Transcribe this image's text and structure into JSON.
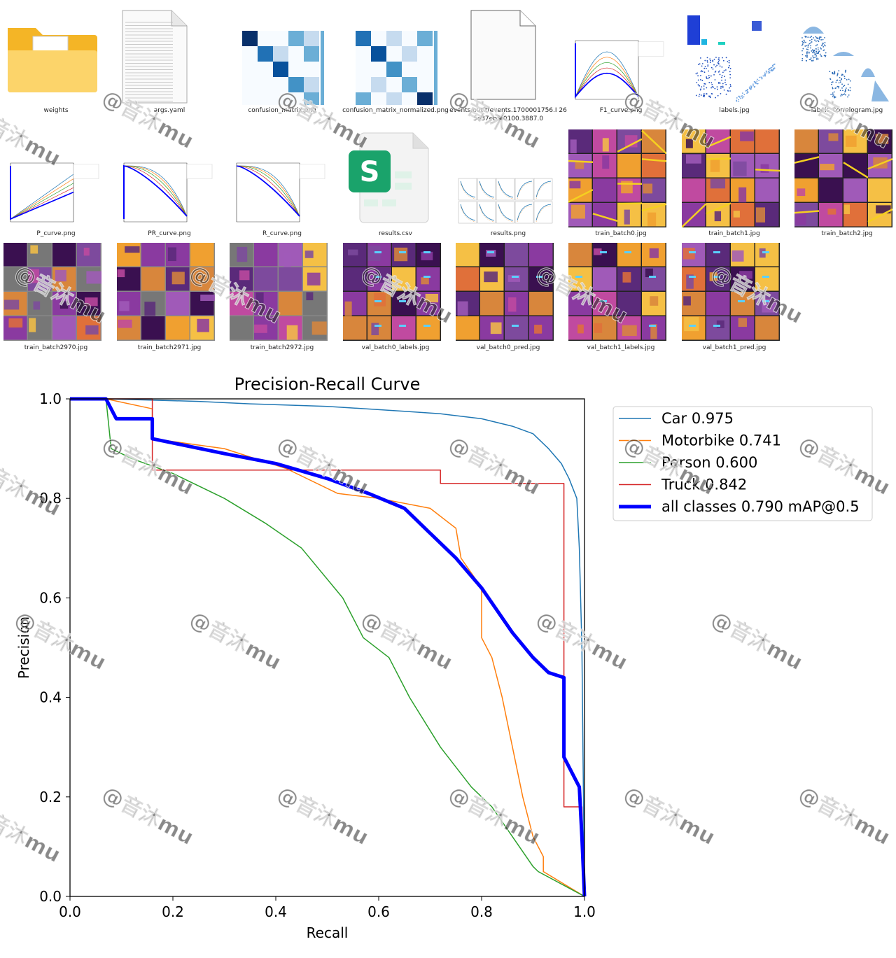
{
  "files": [
    {
      "name": "weights",
      "kind": "folder"
    },
    {
      "name": "args.yaml",
      "kind": "text"
    },
    {
      "name": "confusion_matrix.png",
      "kind": "confusion"
    },
    {
      "name": "confusion_matrix_normalized.png",
      "kind": "confusion2"
    },
    {
      "name": "events.out.tfevents.1700001756.I 265e37eb5f0100.3887.0",
      "kind": "blank"
    },
    {
      "name": "F1_curve.png",
      "kind": "curve"
    },
    {
      "name": "labels.jpg",
      "kind": "labels"
    },
    {
      "name": "labels_correlogram.jpg",
      "kind": "correlogram"
    },
    {
      "name": "P_curve.png",
      "kind": "curve"
    },
    {
      "name": "PR_curve.png",
      "kind": "curve"
    },
    {
      "name": "R_curve.png",
      "kind": "curve"
    },
    {
      "name": "results.csv",
      "kind": "csv"
    },
    {
      "name": "results.png",
      "kind": "results"
    },
    {
      "name": "train_batch0.jpg",
      "kind": "mosaic"
    },
    {
      "name": "train_batch1.jpg",
      "kind": "mosaic"
    },
    {
      "name": "train_batch2.jpg",
      "kind": "mosaic"
    },
    {
      "name": "train_batch2970.jpg",
      "kind": "mosaic-gray"
    },
    {
      "name": "train_batch2971.jpg",
      "kind": "mosaic-gray"
    },
    {
      "name": "train_batch2972.jpg",
      "kind": "mosaic-gray"
    },
    {
      "name": "val_batch0_labels.jpg",
      "kind": "val"
    },
    {
      "name": "val_batch0_pred.jpg",
      "kind": "val"
    },
    {
      "name": "val_batch1_labels.jpg",
      "kind": "val"
    },
    {
      "name": "val_batch1_pred.jpg",
      "kind": "val"
    }
  ],
  "watermark": "@音沐mu",
  "colors": {
    "car": "#1f77b4",
    "motorbike": "#ff7f0e",
    "person": "#2ca02c",
    "truck": "#d62728",
    "all": "#0000ff"
  },
  "chart_data": {
    "type": "line",
    "title": "Precision-Recall Curve",
    "xlabel": "Recall",
    "ylabel": "Precision",
    "xlim": [
      0,
      1
    ],
    "ylim": [
      0,
      1
    ],
    "xticks": [
      "0.0",
      "0.2",
      "0.4",
      "0.6",
      "0.8",
      "1.0"
    ],
    "yticks": [
      "0.0",
      "0.2",
      "0.4",
      "0.6",
      "0.8",
      "1.0"
    ],
    "legend_position": "top-right",
    "series": [
      {
        "name": "Car 0.975",
        "color": "#1f77b4",
        "width": 1.5,
        "x": [
          0,
          0.07,
          0.25,
          0.35,
          0.5,
          0.65,
          0.72,
          0.8,
          0.86,
          0.9,
          0.93,
          0.955,
          0.97,
          0.985,
          0.99,
          0.995,
          0.998,
          1.0
        ],
        "y": [
          1,
          1,
          0.995,
          0.99,
          0.985,
          0.975,
          0.97,
          0.96,
          0.945,
          0.93,
          0.9,
          0.87,
          0.84,
          0.8,
          0.7,
          0.5,
          0.2,
          0
        ]
      },
      {
        "name": "Motorbike 0.741",
        "color": "#ff7f0e",
        "width": 1.5,
        "x": [
          0,
          0.07,
          0.16,
          0.16,
          0.3,
          0.42,
          0.52,
          0.6,
          0.7,
          0.75,
          0.76,
          0.78,
          0.8,
          0.8,
          0.82,
          0.84,
          0.86,
          0.88,
          0.9,
          0.92,
          0.92,
          1.0
        ],
        "y": [
          1,
          1,
          0.98,
          0.92,
          0.9,
          0.86,
          0.81,
          0.8,
          0.78,
          0.74,
          0.68,
          0.65,
          0.62,
          0.52,
          0.48,
          0.4,
          0.3,
          0.2,
          0.12,
          0.08,
          0.05,
          0.0
        ]
      },
      {
        "name": "Person 0.600",
        "color": "#2ca02c",
        "width": 1.5,
        "x": [
          0,
          0.07,
          0.08,
          0.12,
          0.2,
          0.3,
          0.38,
          0.45,
          0.53,
          0.57,
          0.62,
          0.66,
          0.72,
          0.78,
          0.82,
          0.86,
          0.9,
          0.91,
          1.0
        ],
        "y": [
          1,
          1,
          0.9,
          0.88,
          0.85,
          0.8,
          0.75,
          0.7,
          0.6,
          0.52,
          0.48,
          0.4,
          0.3,
          0.22,
          0.18,
          0.12,
          0.06,
          0.05,
          0.0
        ]
      },
      {
        "name": "Truck 0.842",
        "color": "#d62728",
        "width": 1.5,
        "x": [
          0,
          0.16,
          0.16,
          0.72,
          0.72,
          0.96,
          0.96,
          0.995,
          1.0
        ],
        "y": [
          1,
          1,
          0.857,
          0.857,
          0.83,
          0.83,
          0.18,
          0.18,
          0.0
        ]
      },
      {
        "name": "all classes 0.790 mAP@0.5",
        "color": "#0000ff",
        "width": 5,
        "x": [
          0,
          0.07,
          0.09,
          0.16,
          0.16,
          0.3,
          0.4,
          0.5,
          0.58,
          0.65,
          0.7,
          0.75,
          0.8,
          0.86,
          0.9,
          0.93,
          0.96,
          0.96,
          0.99,
          0.995,
          1.0
        ],
        "y": [
          1,
          1,
          0.96,
          0.96,
          0.92,
          0.89,
          0.87,
          0.84,
          0.81,
          0.78,
          0.73,
          0.68,
          0.62,
          0.53,
          0.48,
          0.45,
          0.44,
          0.28,
          0.22,
          0.12,
          0.0
        ]
      }
    ]
  }
}
